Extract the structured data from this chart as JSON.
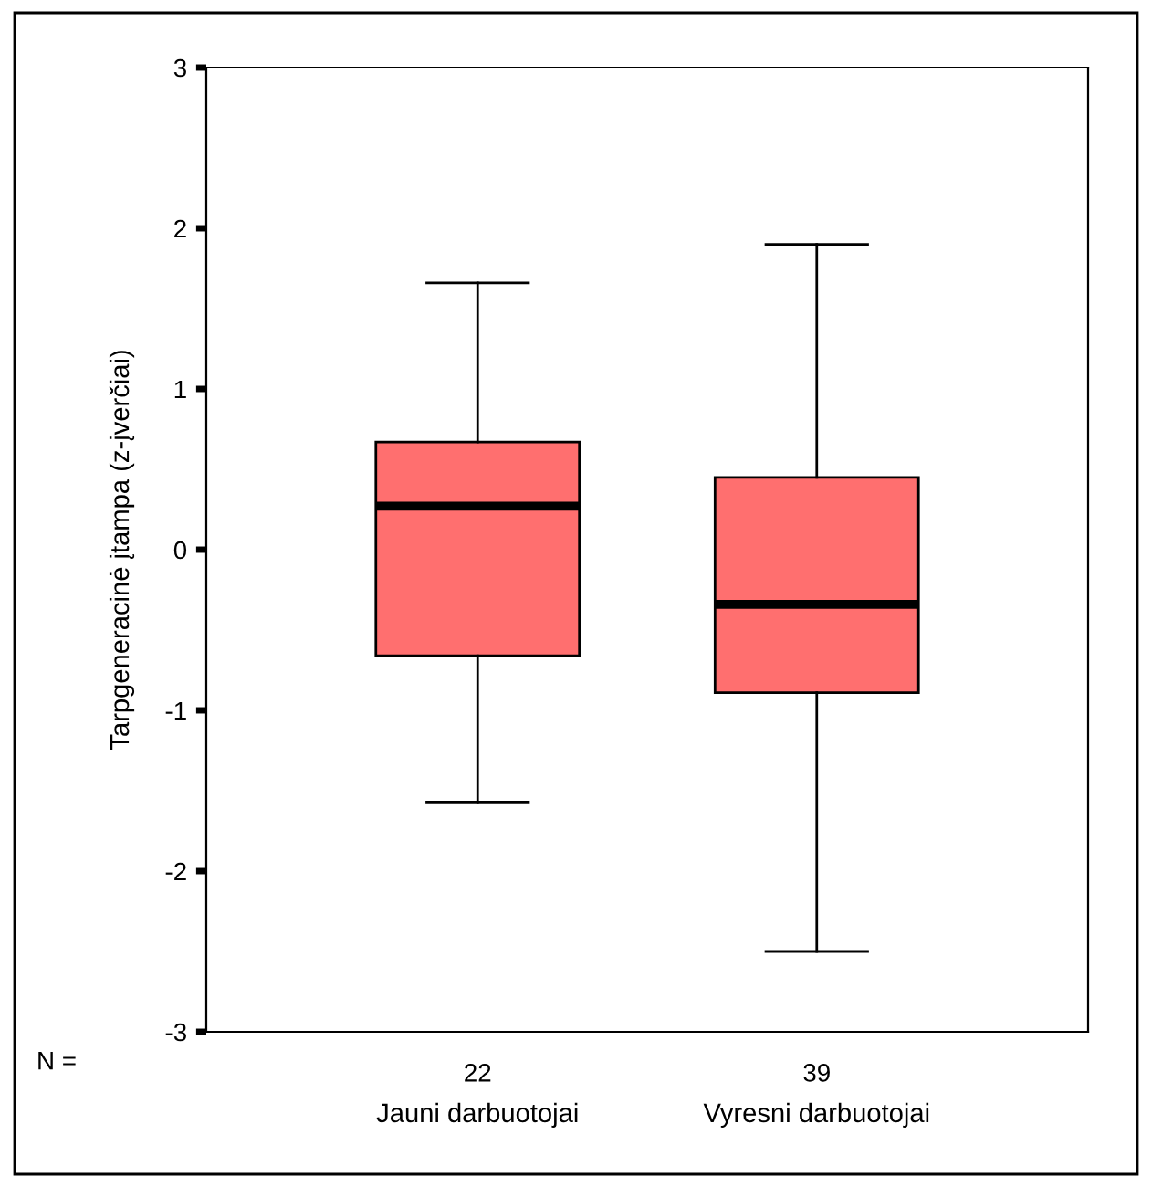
{
  "chart_data": {
    "type": "box",
    "ylabel": "Tarpgeneracinė įtampa (z-įverčiai)",
    "categories": [
      "Jauni darbuotojai",
      "Vyresni darbuotojai"
    ],
    "color": "#ff6f6f",
    "boxes": [
      {
        "low": -1.57,
        "q1": -0.66,
        "median": 0.27,
        "q3": 0.67,
        "high": 1.66
      },
      {
        "low": -2.5,
        "q1": -0.89,
        "median": -0.34,
        "q3": 0.45,
        "high": 1.9
      }
    ],
    "ylim": [
      -3,
      3
    ],
    "yticks": [
      -3,
      -2,
      -1,
      0,
      1,
      2,
      3
    ],
    "grid": false,
    "annotations": [
      "N =",
      "22",
      "39"
    ]
  }
}
